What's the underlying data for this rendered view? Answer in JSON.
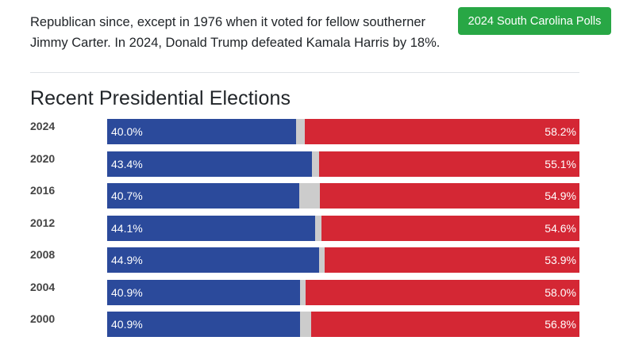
{
  "intro": {
    "text": "Republican since, except in 1976 when it voted for fellow southerner Jimmy Carter. In 2024, Donald Trump defeated Kamala Harris by 18%."
  },
  "polls_button": {
    "label": "2024 South Carolina Polls",
    "color": "#28a745"
  },
  "section": {
    "title": "Recent Presidential Elections"
  },
  "colors": {
    "democrat": "#2b4a9b",
    "other": "#cccccc",
    "republican": "#d42734"
  },
  "chart_data": {
    "type": "bar",
    "stacked": true,
    "orientation": "horizontal",
    "categories": [
      "2024",
      "2020",
      "2016",
      "2012",
      "2008",
      "2004",
      "2000"
    ],
    "series": [
      {
        "values": [
          40.0,
          43.4,
          40.7,
          44.1,
          44.9,
          40.9,
          40.9
        ],
        "labels": [
          "40.0%",
          "43.4%",
          "40.7%",
          "44.1%",
          "44.9%",
          "40.9%",
          "40.9%"
        ]
      },
      {
        "values": [
          58.2,
          55.1,
          54.9,
          54.6,
          53.9,
          58.0,
          56.8
        ],
        "labels": [
          "58.2%",
          "55.1%",
          "54.9%",
          "54.6%",
          "53.9%",
          "58.0%",
          "56.8%"
        ]
      }
    ]
  }
}
